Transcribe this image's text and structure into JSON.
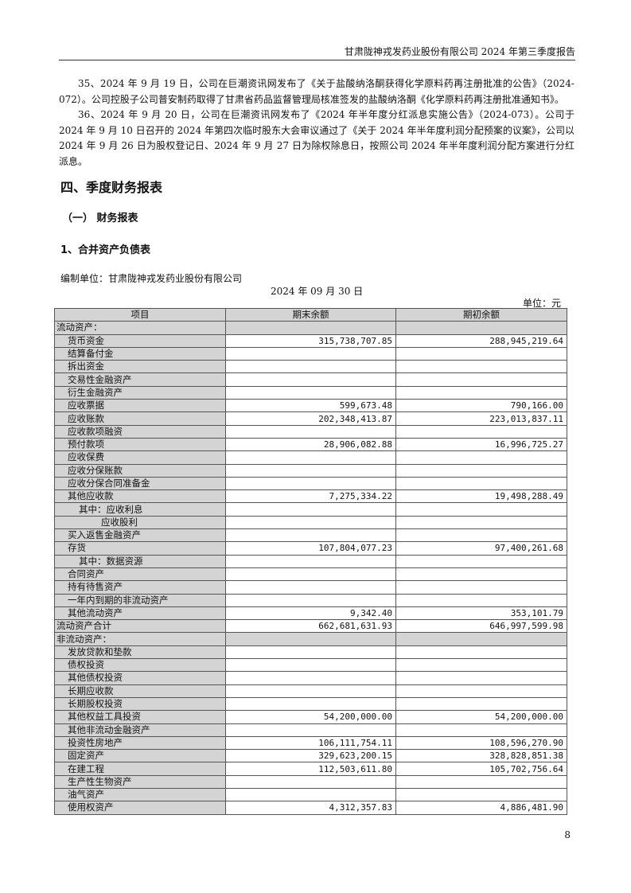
{
  "header": {
    "title": "甘肃陇神戎发药业股份有限公司 2024 年第三季度报告"
  },
  "paragraphs": [
    "35、2024 年 9 月 19 日，公司在巨潮资讯网发布了《关于盐酸纳洛酮获得化学原料药再注册批准的公告》（2024-072）。公司控股子公司普安制药取得了甘肃省药品监督管理局核准签发的盐酸纳洛酮《化学原料药再注册批准通知书》。",
    "36、2024 年 9 月 20 日，公司在巨潮资讯网发布了《2024 年半年度分红派息实施公告》（2024-073）。公司于 2024 年 9 月 10 日召开的 2024 年第四次临时股东大会审议通过了《关于 2024 年半年度利润分配预案的议案》，公司以 2024 年 9 月 26 日为股权登记日、2024 年 9 月 27 日为除权除息日，按照公司 2024 年半年度利润分配方案进行分红派息。"
  ],
  "section_title": "四、季度财务报表",
  "subsection_title": "（一）  财务报表",
  "table_title": "1、合并资产负债表",
  "compiler": "编制单位：甘肃陇神戎发药业股份有限公司",
  "date": "2024 年 09 月 30 日",
  "unit": "单位：元",
  "table": {
    "columns": [
      "项目",
      "期末余额",
      "期初余额"
    ],
    "rows": [
      {
        "name": "流动资产：",
        "level": 0,
        "section": true,
        "end": "",
        "begin": ""
      },
      {
        "name": "货币资金",
        "level": 1,
        "end": "315,738,707.85",
        "begin": "288,945,219.64"
      },
      {
        "name": "结算备付金",
        "level": 1,
        "end": "",
        "begin": ""
      },
      {
        "name": "拆出资金",
        "level": 1,
        "end": "",
        "begin": ""
      },
      {
        "name": "交易性金融资产",
        "level": 1,
        "end": "",
        "begin": ""
      },
      {
        "name": "衍生金融资产",
        "level": 1,
        "end": "",
        "begin": ""
      },
      {
        "name": "应收票据",
        "level": 1,
        "end": "599,673.48",
        "begin": "790,166.00"
      },
      {
        "name": "应收账款",
        "level": 1,
        "end": "202,348,413.87",
        "begin": "223,013,837.11"
      },
      {
        "name": "应收款项融资",
        "level": 1,
        "end": "",
        "begin": ""
      },
      {
        "name": "预付款项",
        "level": 1,
        "end": "28,906,082.88",
        "begin": "16,996,725.27"
      },
      {
        "name": "应收保费",
        "level": 1,
        "end": "",
        "begin": ""
      },
      {
        "name": "应收分保账款",
        "level": 1,
        "end": "",
        "begin": ""
      },
      {
        "name": "应收分保合同准备金",
        "level": 1,
        "end": "",
        "begin": ""
      },
      {
        "name": "其他应收款",
        "level": 1,
        "end": "7,275,334.22",
        "begin": "19,498,288.49"
      },
      {
        "name": "其中：应收利息",
        "level": 2,
        "end": "",
        "begin": ""
      },
      {
        "name": "应收股利",
        "level": 3,
        "end": "",
        "begin": ""
      },
      {
        "name": "买入返售金融资产",
        "level": 1,
        "end": "",
        "begin": ""
      },
      {
        "name": "存货",
        "level": 1,
        "end": "107,804,077.23",
        "begin": "97,400,261.68"
      },
      {
        "name": "其中：数据资源",
        "level": 2,
        "end": "",
        "begin": ""
      },
      {
        "name": "合同资产",
        "level": 1,
        "end": "",
        "begin": ""
      },
      {
        "name": "持有待售资产",
        "level": 1,
        "end": "",
        "begin": ""
      },
      {
        "name": "一年内到期的非流动资产",
        "level": 1,
        "end": "",
        "begin": ""
      },
      {
        "name": "其他流动资产",
        "level": 1,
        "end": "9,342.40",
        "begin": "353,101.79"
      },
      {
        "name": "流动资产合计",
        "level": 0,
        "end": "662,681,631.93",
        "begin": "646,997,599.98"
      },
      {
        "name": "非流动资产：",
        "level": 0,
        "section": true,
        "end": "",
        "begin": ""
      },
      {
        "name": "发放贷款和垫款",
        "level": 1,
        "end": "",
        "begin": ""
      },
      {
        "name": "债权投资",
        "level": 1,
        "end": "",
        "begin": ""
      },
      {
        "name": "其他债权投资",
        "level": 1,
        "end": "",
        "begin": ""
      },
      {
        "name": "长期应收款",
        "level": 1,
        "end": "",
        "begin": ""
      },
      {
        "name": "长期股权投资",
        "level": 1,
        "end": "",
        "begin": ""
      },
      {
        "name": "其他权益工具投资",
        "level": 1,
        "end": "54,200,000.00",
        "begin": "54,200,000.00"
      },
      {
        "name": "其他非流动金融资产",
        "level": 1,
        "end": "",
        "begin": ""
      },
      {
        "name": "投资性房地产",
        "level": 1,
        "end": "106,111,754.11",
        "begin": "108,596,270.90"
      },
      {
        "name": "固定资产",
        "level": 1,
        "end": "329,623,200.15",
        "begin": "328,828,851.38"
      },
      {
        "name": "在建工程",
        "level": 1,
        "end": "112,503,611.80",
        "begin": "105,702,756.64"
      },
      {
        "name": "生产性生物资产",
        "level": 1,
        "end": "",
        "begin": ""
      },
      {
        "name": "油气资产",
        "level": 1,
        "end": "",
        "begin": ""
      },
      {
        "name": "使用权资产",
        "level": 1,
        "end": "4,312,357.83",
        "begin": "4,886,481.90"
      }
    ]
  },
  "page_number": "8"
}
